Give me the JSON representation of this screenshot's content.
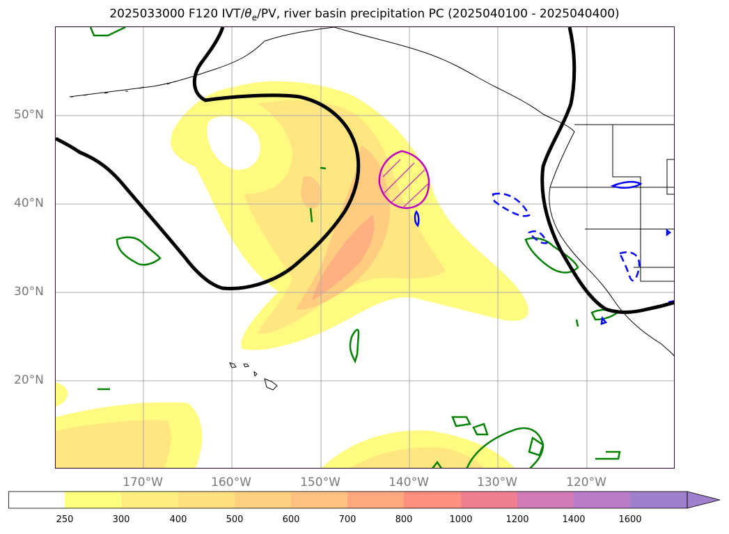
{
  "title": {
    "prefix": "2025033000 F120 IVT/",
    "theta": "θ",
    "theta_sub": "e",
    "suffix": "/PV, river basin precipitation PC (2025040100 - 2025040400)"
  },
  "lat_labels": [
    "50°N",
    "40°N",
    "30°N",
    "20°N"
  ],
  "lon_labels": [
    "170°W",
    "160°W",
    "150°W",
    "140°W",
    "130°W",
    "120°W"
  ],
  "colorbar": {
    "ticks": [
      "250",
      "300",
      "400",
      "500",
      "600",
      "700",
      "800",
      "1000",
      "1200",
      "1400",
      "1600"
    ],
    "colors": [
      "#ffffff",
      "#ffff80",
      "#ffee80",
      "#ffe080",
      "#ffd080",
      "#ffc080",
      "#ffa880",
      "#ff9080",
      "#f08090",
      "#d07ab8",
      "#b87cc8",
      "#9f80cc"
    ]
  },
  "colors": {
    "ivt_light": "#fffa80",
    "ivt_mid": "#ffe680",
    "ivt_dark": "#ffcc80",
    "ivt_max": "#ffb080",
    "pv_contour": "#000000",
    "positive_pc": "#008000",
    "negative_pc": "#0000ff",
    "high_pc": "#c000c0"
  }
}
